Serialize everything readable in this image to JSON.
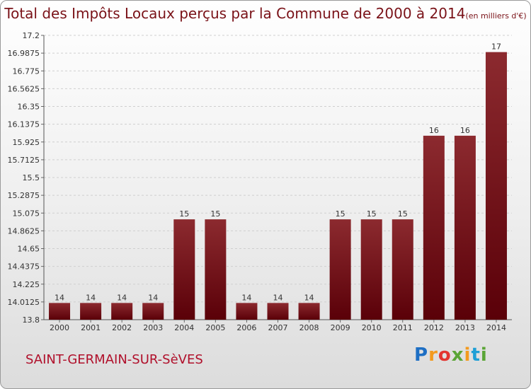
{
  "title": "Total des Impôts Locaux perçus par la Commune de 2000 à 2014",
  "title_unit": "(en milliers d'€)",
  "commune": "SAINT-GERMAIN-SUR-SèVES",
  "logo_text": "Proxiti",
  "colors": {
    "bar_top": "#8c2a2f",
    "bar_bottom": "#5a0008",
    "title": "#7a1218",
    "commune": "#b0102b"
  },
  "chart_data": {
    "type": "bar",
    "title": "Total des Impôts Locaux perçus par la Commune de 2000 à 2014",
    "xlabel": "",
    "ylabel": "en milliers d'€",
    "categories": [
      "2000",
      "2001",
      "2002",
      "2003",
      "2004",
      "2005",
      "2006",
      "2007",
      "2008",
      "2009",
      "2010",
      "2011",
      "2012",
      "2013",
      "2014"
    ],
    "values": [
      14,
      14,
      14,
      14,
      15,
      15,
      14,
      14,
      14,
      15,
      15,
      15,
      16,
      16,
      17
    ],
    "value_labels": [
      "14",
      "14",
      "14",
      "14",
      "15",
      "15",
      "14",
      "14",
      "14",
      "15",
      "15",
      "15",
      "16",
      "16",
      "17"
    ],
    "display_values": [
      14,
      14,
      14,
      14,
      15,
      15,
      14,
      14,
      14,
      15,
      15,
      15,
      16,
      16,
      17
    ],
    "ylim": [
      13.8,
      17.2
    ],
    "yticks": [
      "13.8",
      "14.0125",
      "14.225",
      "14.4375",
      "14.65",
      "14.8625",
      "15.075",
      "15.2875",
      "15.5",
      "15.7125",
      "15.925",
      "16.1375",
      "16.35",
      "16.5625",
      "16.775",
      "16.9875",
      "17.2"
    ],
    "grid": true
  }
}
